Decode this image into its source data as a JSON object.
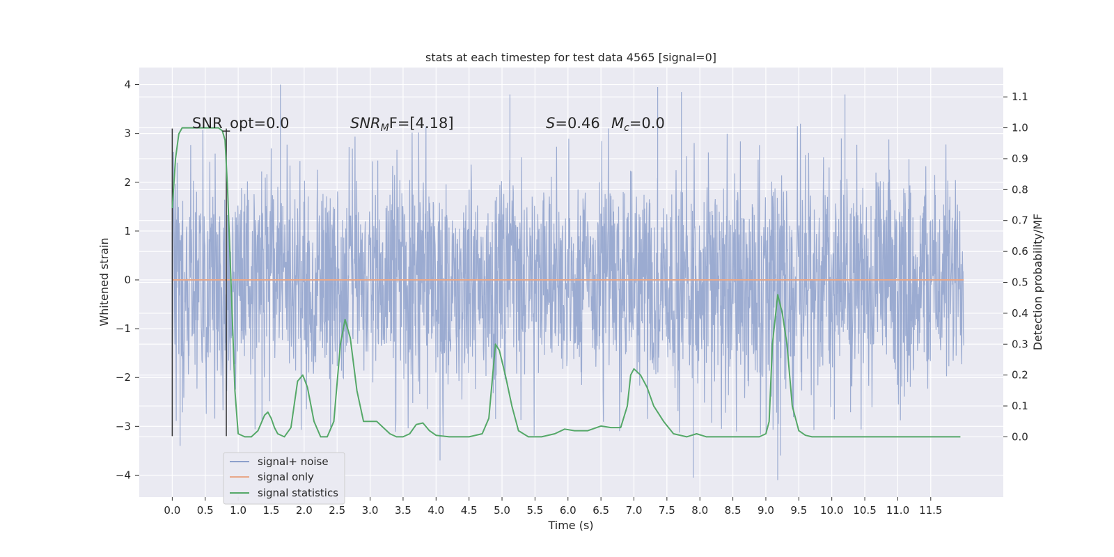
{
  "chart_data": {
    "type": "line",
    "title": "stats at each timestep for test data 4565 [signal=0]",
    "xlabel": "Time (s)",
    "ylabel_left": "Whitened strain",
    "ylabel_right": "Detection probability/MF",
    "xlim": [
      -0.5,
      12.6
    ],
    "ylim_left": [
      -4.45,
      4.35
    ],
    "ylim_right": [
      -0.195,
      1.195
    ],
    "x_ticks": [
      0.0,
      0.5,
      1.0,
      1.5,
      2.0,
      2.5,
      3.0,
      3.5,
      4.0,
      4.5,
      5.0,
      5.5,
      6.0,
      6.5,
      7.0,
      7.5,
      8.0,
      8.5,
      9.0,
      9.5,
      10.0,
      10.5,
      11.0,
      11.5
    ],
    "x_tick_labels": [
      "0.0",
      "0.5",
      "1.0",
      "1.5",
      "2.0",
      "2.5",
      "3.0",
      "3.5",
      "4.0",
      "4.5",
      "5.0",
      "5.5",
      "6.0",
      "6.5",
      "7.0",
      "7.5",
      "8.0",
      "8.5",
      "9.0",
      "9.5",
      "10.0",
      "10.5",
      "11.0",
      "11.5"
    ],
    "y_left_ticks": [
      -4,
      -3,
      -2,
      -1,
      0,
      1,
      2,
      3,
      4
    ],
    "y_left_tick_labels": [
      "−4",
      "−3",
      "−2",
      "−1",
      "0",
      "1",
      "2",
      "3",
      "4"
    ],
    "y_right_ticks": [
      0.0,
      0.1,
      0.2,
      0.3,
      0.4,
      0.5,
      0.6,
      0.7,
      0.8,
      0.9,
      1.0,
      1.1
    ],
    "y_right_tick_labels": [
      "0.0",
      "0.1",
      "0.2",
      "0.3",
      "0.4",
      "0.5",
      "0.6",
      "0.7",
      "0.8",
      "0.9",
      "1.0",
      "1.1"
    ],
    "grid": true,
    "legend_position": "lower-left",
    "annotations": {
      "snr_opt": "SNR_opt=0.0",
      "snr_mf_main": "SNR",
      "snr_mf_sub": "M",
      "snr_mf_rest": "F=[4.18]",
      "s_main": "S",
      "s_rest": "=0.46",
      "mc_main": "M",
      "mc_sub": "c",
      "mc_rest": "=0.0"
    },
    "window_markers": {
      "x": [
        0.0,
        0.82
      ],
      "y_range": [
        -3.2,
        3.1
      ],
      "color": "#333333"
    },
    "series": [
      {
        "name": "signal+ noise",
        "color": "#8da0cb",
        "axis": "left",
        "x_range": [
          0.0,
          12.0
        ],
        "envelope": {
          "typical_peak": 2.6,
          "max": 4.0,
          "min": -4.1,
          "outliers": [
            {
              "x": 1.64,
              "y": 4.0
            },
            {
              "x": 7.36,
              "y": 3.95
            },
            {
              "x": 9.18,
              "y": -4.1
            },
            {
              "x": 7.9,
              "y": -4.05
            },
            {
              "x": 4.06,
              "y": -3.7
            },
            {
              "x": 0.12,
              "y": -3.4
            },
            {
              "x": 5.12,
              "y": 3.8
            },
            {
              "x": 7.72,
              "y": 3.85
            },
            {
              "x": 10.2,
              "y": 3.8
            },
            {
              "x": 9.22,
              "y": -3.6
            }
          ]
        }
      },
      {
        "name": "signal only",
        "color": "#e8a889",
        "axis": "left",
        "x": [
          0.0,
          12.0
        ],
        "y": [
          0.0,
          0.0
        ]
      },
      {
        "name": "signal statistics",
        "color": "#55a868",
        "axis": "right",
        "x": [
          0.0,
          0.05,
          0.1,
          0.15,
          0.2,
          0.3,
          0.45,
          0.6,
          0.7,
          0.76,
          0.8,
          0.84,
          0.9,
          0.95,
          1.0,
          1.1,
          1.2,
          1.3,
          1.4,
          1.45,
          1.5,
          1.55,
          1.6,
          1.7,
          1.8,
          1.9,
          1.98,
          2.05,
          2.15,
          2.25,
          2.35,
          2.45,
          2.55,
          2.62,
          2.7,
          2.8,
          2.9,
          3.0,
          3.1,
          3.2,
          3.3,
          3.4,
          3.5,
          3.6,
          3.7,
          3.8,
          3.9,
          4.0,
          4.2,
          4.5,
          4.7,
          4.8,
          4.9,
          4.96,
          5.05,
          5.15,
          5.25,
          5.4,
          5.6,
          5.8,
          5.95,
          6.1,
          6.3,
          6.5,
          6.65,
          6.8,
          6.9,
          6.95,
          7.0,
          7.1,
          7.2,
          7.3,
          7.45,
          7.6,
          7.8,
          7.95,
          8.1,
          8.3,
          8.6,
          8.9,
          9.0,
          9.05,
          9.1,
          9.18,
          9.25,
          9.32,
          9.4,
          9.5,
          9.6,
          9.7,
          10.0,
          10.5,
          11.0,
          11.5,
          11.95
        ],
        "y": [
          0.74,
          0.9,
          0.98,
          1.0,
          1.0,
          1.0,
          1.0,
          1.0,
          1.0,
          0.99,
          0.96,
          0.8,
          0.45,
          0.15,
          0.01,
          0.0,
          0.0,
          0.02,
          0.07,
          0.08,
          0.06,
          0.03,
          0.01,
          0.0,
          0.03,
          0.18,
          0.2,
          0.16,
          0.05,
          0.0,
          0.0,
          0.05,
          0.3,
          0.38,
          0.32,
          0.15,
          0.05,
          0.05,
          0.05,
          0.03,
          0.01,
          0.0,
          0.0,
          0.01,
          0.04,
          0.045,
          0.02,
          0.005,
          0.0,
          0.0,
          0.01,
          0.06,
          0.3,
          0.28,
          0.2,
          0.1,
          0.02,
          0.0,
          0.0,
          0.01,
          0.025,
          0.02,
          0.02,
          0.035,
          0.03,
          0.03,
          0.1,
          0.2,
          0.22,
          0.2,
          0.16,
          0.1,
          0.05,
          0.01,
          0.0,
          0.01,
          0.0,
          0.0,
          0.0,
          0.0,
          0.01,
          0.05,
          0.3,
          0.46,
          0.4,
          0.3,
          0.1,
          0.02,
          0.005,
          0.0,
          0.0,
          0.0,
          0.0,
          0.0,
          0.0
        ]
      }
    ]
  }
}
